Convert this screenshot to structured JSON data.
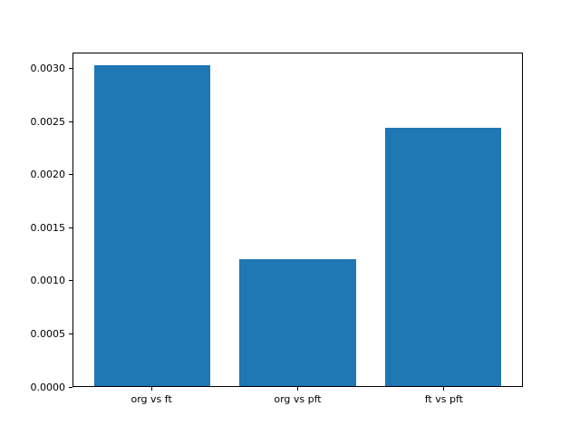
{
  "figure": {
    "background": "#ffffff",
    "spine_color": "#000000"
  },
  "chart_data": {
    "type": "bar",
    "title": "",
    "xlabel": "",
    "ylabel": "",
    "categories": [
      "org vs ft",
      "org vs pft",
      "ft vs pft"
    ],
    "values": [
      0.00304,
      0.0012,
      0.00245
    ],
    "bar_color": "#1f77b4",
    "ylim": [
      0,
      0.00315
    ],
    "yticks": [
      0.0,
      0.0005,
      0.001,
      0.0015,
      0.002,
      0.0025,
      0.003
    ],
    "ytick_labels": [
      "0.0000",
      "0.0005",
      "0.0010",
      "0.0015",
      "0.0020",
      "0.0025",
      "0.0030"
    ],
    "grid": false,
    "legend": null
  }
}
